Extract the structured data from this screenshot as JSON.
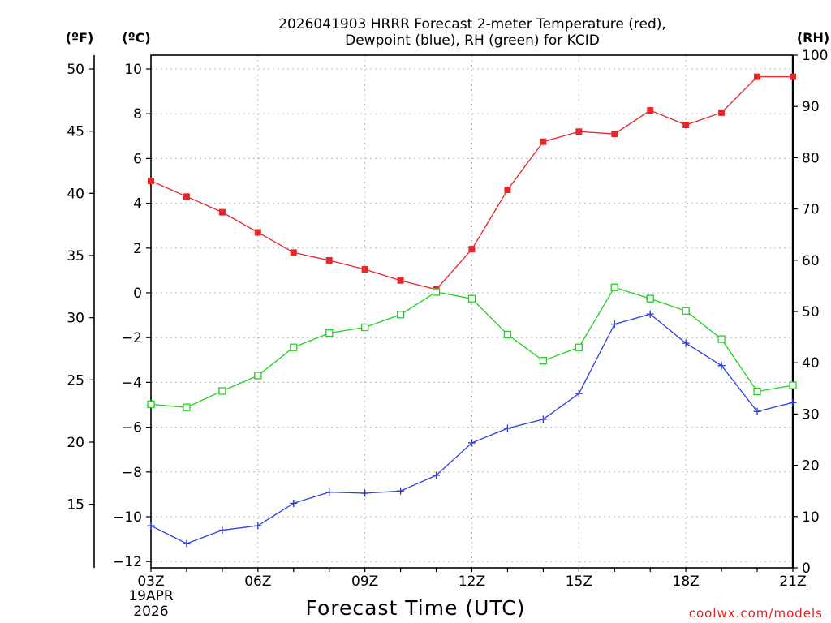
{
  "chart_data": {
    "type": "line",
    "title_lines": [
      "2026041903 HRRR Forecast 2-meter Temperature (red),",
      "Dewpoint (blue), RH (green) for KCID"
    ],
    "xlabel": "Forecast Time (UTC)",
    "x_hours": [
      3,
      4,
      5,
      6,
      7,
      8,
      9,
      10,
      11,
      12,
      13,
      14,
      15,
      16,
      17,
      18,
      19,
      20,
      21
    ],
    "x_ticks": [
      {
        "hour": 3,
        "label": "03Z"
      },
      {
        "hour": 6,
        "label": "06Z"
      },
      {
        "hour": 9,
        "label": "09Z"
      },
      {
        "hour": 12,
        "label": "12Z"
      },
      {
        "hour": 15,
        "label": "15Z"
      },
      {
        "hour": 18,
        "label": "18Z"
      },
      {
        "hour": 21,
        "label": "21Z"
      }
    ],
    "date_label": [
      "19APR",
      "2026"
    ],
    "xlim": [
      3,
      21
    ],
    "y_celsius": {
      "unit_label": "(ºC)",
      "range": [
        -12,
        10.5
      ],
      "ticks": [
        10,
        8,
        6,
        4,
        2,
        0,
        -2,
        -4,
        -6,
        -8,
        -10,
        -12
      ],
      "tick_labels": [
        "10",
        "8",
        "6",
        "4",
        "2",
        "0",
        "−2",
        "−4",
        "−6",
        "−8",
        "−10",
        "−12"
      ]
    },
    "y_fahrenheit": {
      "unit_label": "(ºF)",
      "ticks": [
        50,
        45,
        40,
        35,
        30,
        25,
        20,
        15
      ],
      "tick_labels": [
        "50",
        "45",
        "40",
        "35",
        "30",
        "25",
        "20",
        "15"
      ]
    },
    "y_rh": {
      "unit_label": "(RH)",
      "range": [
        0,
        100
      ],
      "ticks": [
        100,
        90,
        80,
        70,
        60,
        50,
        40,
        30,
        20,
        10,
        0
      ],
      "tick_labels": [
        "100",
        "90",
        "80",
        "70",
        "60",
        "50",
        "40",
        "30",
        "20",
        "10",
        "0"
      ]
    },
    "series": [
      {
        "name": "2-meter Temperature",
        "color": "#e8262a",
        "axis": "celsius",
        "marker": "filled-square",
        "values": [
          5.0,
          4.3,
          3.6,
          2.7,
          1.8,
          1.45,
          1.05,
          0.55,
          0.15,
          1.95,
          4.6,
          6.75,
          7.2,
          7.1,
          8.15,
          7.5,
          8.05,
          9.65,
          9.65
        ]
      },
      {
        "name": "Dewpoint",
        "color": "#2b3fe0",
        "axis": "celsius",
        "marker": "plus",
        "values": [
          -10.4,
          -11.2,
          -10.6,
          -10.4,
          -9.4,
          -8.9,
          -8.95,
          -8.85,
          -8.15,
          -6.7,
          -6.05,
          -5.65,
          -4.5,
          -1.4,
          -0.95,
          -2.25,
          -3.25,
          -5.3,
          -4.9
        ]
      },
      {
        "name": "RH",
        "color": "#1ed31e",
        "axis": "rh",
        "marker": "open-square",
        "values": [
          31.9,
          31.3,
          34.5,
          37.5,
          43.0,
          45.8,
          46.9,
          49.4,
          53.8,
          52.5,
          45.5,
          40.4,
          43.0,
          54.7,
          52.5,
          50.1,
          44.6,
          34.4,
          35.6
        ]
      }
    ],
    "credit": "coolwx.com/models"
  }
}
